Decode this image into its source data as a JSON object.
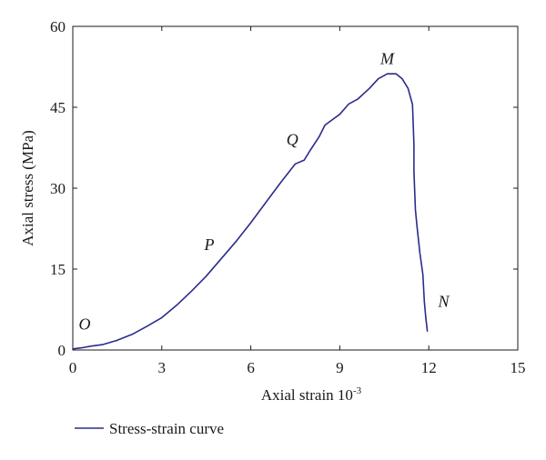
{
  "chart_data": {
    "type": "line",
    "title": "",
    "xlabel": "Axial strain 10",
    "xlabel_sup": "-3",
    "ylabel": "Axial stress (MPa)",
    "xlim": [
      0,
      15
    ],
    "ylim": [
      0,
      60
    ],
    "xticks": [
      0,
      3,
      6,
      9,
      12,
      15
    ],
    "yticks": [
      0,
      15,
      30,
      45,
      60
    ],
    "grid": false,
    "legend_position": "bottom-left",
    "series": [
      {
        "name": "Stress-strain curve",
        "color": "#2b2b8c",
        "x": [
          0,
          0.3,
          0.6,
          1.0,
          1.5,
          2.0,
          2.5,
          3.0,
          3.5,
          4.0,
          4.5,
          5.0,
          5.5,
          6.0,
          6.5,
          7.0,
          7.5,
          7.8,
          8.0,
          8.3,
          8.5,
          9.0,
          9.3,
          9.6,
          10.0,
          10.3,
          10.6,
          10.9,
          11.1,
          11.3,
          11.45,
          11.5,
          11.5,
          11.55,
          11.6,
          11.7,
          11.8,
          11.85,
          11.9,
          11.95
        ],
        "y": [
          0.2,
          0.4,
          0.7,
          1.0,
          1.8,
          2.9,
          4.4,
          6.0,
          8.3,
          10.9,
          13.7,
          16.9,
          20.1,
          23.6,
          27.3,
          31.0,
          34.5,
          35.2,
          37.0,
          39.5,
          41.7,
          43.7,
          45.6,
          46.5,
          48.5,
          50.3,
          51.2,
          51.2,
          50.3,
          48.5,
          45.5,
          38.0,
          33.0,
          26.0,
          23.0,
          18.0,
          14.0,
          9.0,
          6.0,
          3.5
        ]
      }
    ],
    "annotations": [
      {
        "text": "O",
        "x": 0.4,
        "y": 3.8
      },
      {
        "text": "P",
        "x": 4.6,
        "y": 18.5
      },
      {
        "text": "Q",
        "x": 7.4,
        "y": 38.0
      },
      {
        "text": "M",
        "x": 10.6,
        "y": 53.0
      },
      {
        "text": "N",
        "x": 12.5,
        "y": 8.0
      }
    ]
  }
}
